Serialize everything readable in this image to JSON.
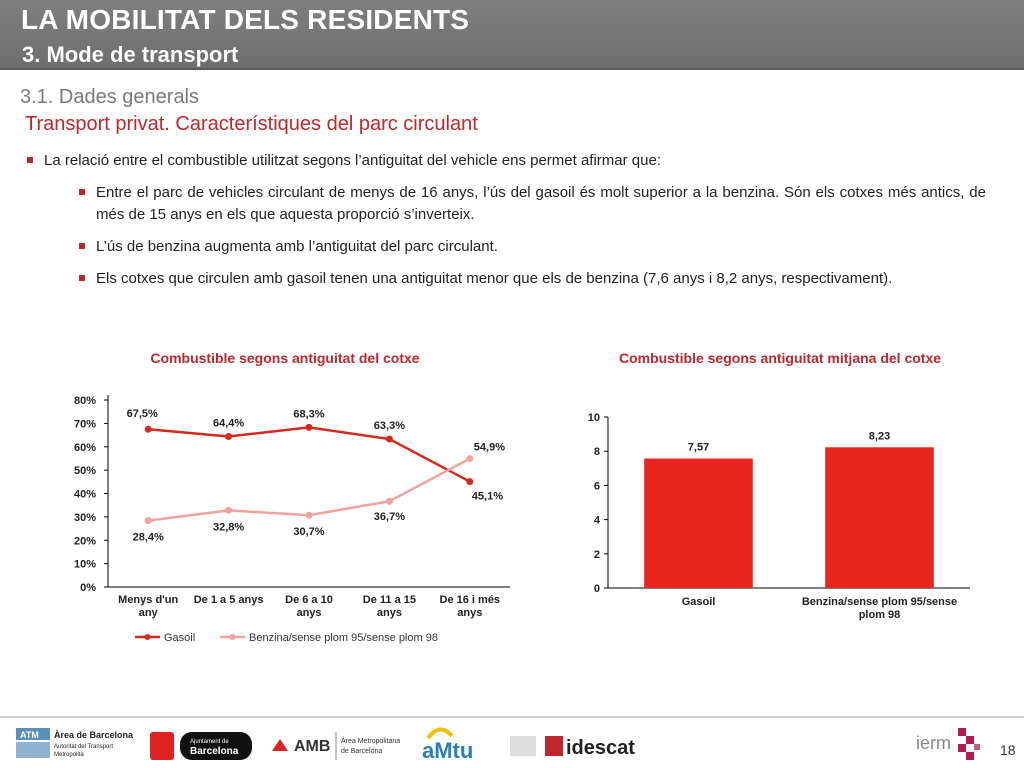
{
  "header": {
    "title": "LA MOBILITAT DELS RESIDENTS",
    "subtitle": "3. Mode de transport"
  },
  "section": "3.1. Dades generals",
  "subsection": "Transport privat. Característiques del parc circulant",
  "bullets": {
    "main": "La relació entre el combustible utilitzat segons l’antiguitat del vehicle ens permet afirmar que:",
    "sub": [
      "Entre el parc de vehicles circulant de menys de 16 anys, l’ús del gasoil és molt superior a la benzina. Són els cotxes més antics, de més de 15 anys en els que aquesta proporció s’inverteix.",
      "L’ús de benzina augmenta amb l’antiguitat del parc circulant.",
      "Els cotxes que circulen amb gasoil tenen una antiguitat menor que els de benzina (7,6 anys i 8,2 anys, respectivament)."
    ]
  },
  "colors": {
    "accent": "#c0262d",
    "gasoil": "#d42a1f",
    "benzina": "#f2a3a0",
    "bar": "#e8261d"
  },
  "chart_data": [
    {
      "type": "line",
      "title": "Combustible segons antiguitat del cotxe",
      "categories": [
        [
          "Menys d'un",
          "any"
        ],
        [
          "De 1 a 5 anys"
        ],
        [
          "De 6 a 10",
          "anys"
        ],
        [
          "De 11 a 15",
          "anys"
        ],
        [
          "De 16 i més",
          "anys"
        ]
      ],
      "yticks": [
        "0%",
        "10%",
        "20%",
        "30%",
        "40%",
        "50%",
        "60%",
        "70%",
        "80%"
      ],
      "ylim": [
        0,
        80
      ],
      "series": [
        {
          "name": "Gasoil",
          "values": [
            67.5,
            64.4,
            68.3,
            63.3,
            45.1
          ],
          "labels": [
            "67,5%",
            "64,4%",
            "68,3%",
            "63,3%",
            "45,1%"
          ]
        },
        {
          "name": "Benzina/sense plom 95/sense plom 98",
          "values": [
            28.4,
            32.8,
            30.7,
            36.7,
            54.9
          ],
          "labels": [
            "28,4%",
            "32,8%",
            "30,7%",
            "36,7%",
            "54,9%"
          ]
        }
      ],
      "legend": "bottom",
      "grid": false
    },
    {
      "type": "bar",
      "title": "Combustible segons antiguitat mitjana del cotxe",
      "categories": [
        [
          "Gasoil"
        ],
        [
          "Benzina/sense plom 95/sense",
          "plom 98"
        ]
      ],
      "values": [
        7.57,
        8.23
      ],
      "labels": [
        "7,57",
        "8,23"
      ],
      "yticks": [
        "0",
        "2",
        "4",
        "6",
        "8",
        "10"
      ],
      "ylim": [
        0,
        10
      ],
      "grid": false
    }
  ],
  "footer": {
    "logos": [
      {
        "name": "ATM",
        "lines": [
          "ATM",
          "Àrea de Barcelona",
          "Autoritat del Transport",
          "Metropolità"
        ]
      },
      {
        "name": "Ajuntament de Barcelona",
        "lines": [
          "Ajuntament de",
          "Barcelona"
        ]
      },
      {
        "name": "AMB",
        "lines": [
          "AMB",
          "Àrea Metropolitana",
          "de Barcelona"
        ]
      },
      {
        "name": "AMTU",
        "lines": [
          "aMtu"
        ]
      },
      {
        "name": "idescat",
        "lines": [
          "idescat"
        ]
      },
      {
        "name": "iermb",
        "lines": [
          "ierm"
        ]
      }
    ],
    "page": "18"
  }
}
